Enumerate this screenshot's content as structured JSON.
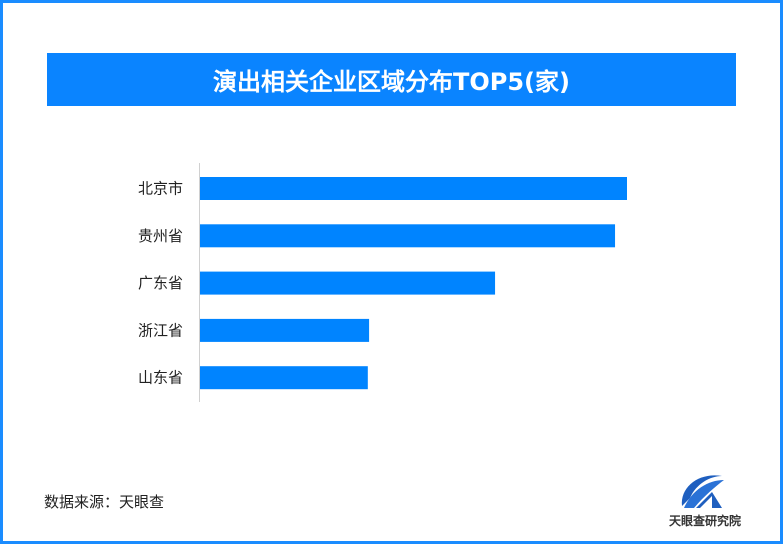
{
  "chart_data": {
    "type": "bar",
    "orientation": "horizontal",
    "title": "演出相关企业区域分布TOP5(家)",
    "categories": [
      "北京市",
      "贵州省",
      "广东省",
      "浙江省",
      "山东省"
    ],
    "values": [
      1.0,
      0.972,
      0.691,
      0.396,
      0.393
    ],
    "value_note": "relative to largest bar; no values printed",
    "xlim": [
      0,
      1
    ],
    "grid": false,
    "legend": "none",
    "bar_color": "#0084ff"
  },
  "source": "数据来源：天眼查",
  "logo_text": "天眼查研究院",
  "colors": {
    "frame": "#1a8cff",
    "title_bg": "#0a84ff"
  }
}
